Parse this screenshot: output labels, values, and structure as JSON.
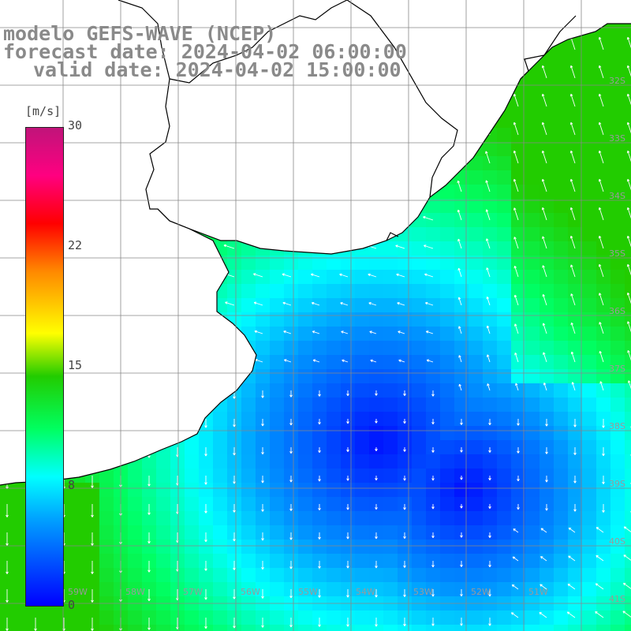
{
  "title": {
    "line1": "modelo GEFS-WAVE (NCEP)",
    "line2": "forecast date: 2024-04-02 06:00:00",
    "line3": "valid date: 2024-04-02 15:00:00"
  },
  "colorbar": {
    "unit": "[m/s]",
    "ticks": [
      "30",
      "22",
      "15",
      "8",
      "0"
    ],
    "colors": [
      "#0000ff",
      "#00a0ff",
      "#00ffff",
      "#00ff60",
      "#22cc00",
      "#ffff00",
      "#ff8800",
      "#ff0000",
      "#c0147a"
    ]
  },
  "grid": {
    "lat_labels": [
      "32S",
      "33S",
      "34S",
      "35S",
      "36S",
      "37S",
      "38S",
      "39S",
      "40S",
      "41S"
    ],
    "lon_labels": [
      "59W",
      "58W",
      "57W",
      "56W",
      "55W",
      "54W",
      "53W",
      "52W",
      "51W"
    ]
  },
  "colors": {
    "land": "#ffffff",
    "coast": "#000000",
    "grid": "#888888",
    "arrow": "#ffffff"
  }
}
